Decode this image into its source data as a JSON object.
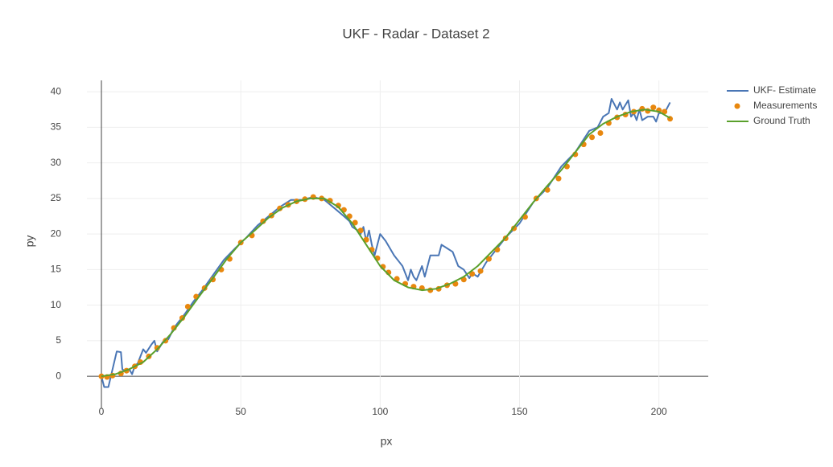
{
  "chart_data": {
    "type": "line",
    "title": "UKF - Radar - Dataset 2",
    "x_label": "px",
    "y_label": "py",
    "xlim": [
      -5.2,
      217.7
    ],
    "ylim": [
      -4.5,
      41.6
    ],
    "xticks": [
      0,
      50,
      100,
      150,
      200
    ],
    "yticks": [
      0,
      5,
      10,
      15,
      20,
      25,
      30,
      35,
      40
    ],
    "grid": true,
    "legend": "top-right",
    "series": [
      {
        "name": "UKF- Estimate",
        "color": "#4a76b5",
        "mode": "lines",
        "x": [
          0,
          1,
          2.5,
          4,
          5.5,
          7,
          7.5,
          9,
          10,
          11,
          12,
          13,
          15,
          16,
          18,
          19,
          20,
          22,
          24,
          26,
          28,
          30,
          33,
          36,
          40,
          44,
          48,
          52,
          56,
          60,
          64,
          68,
          72,
          76,
          80,
          84,
          87,
          89,
          90,
          92,
          93,
          94,
          95,
          96,
          97,
          98,
          100,
          102,
          105,
          107,
          108,
          110,
          111,
          112,
          113,
          115,
          116,
          118,
          120,
          121,
          122,
          124,
          126,
          128,
          130,
          132,
          133,
          135,
          138,
          140,
          145,
          150,
          155,
          160,
          165,
          170,
          175,
          178,
          180,
          182,
          183,
          185,
          186,
          187,
          189,
          190,
          191,
          192,
          193,
          194,
          196,
          198,
          199,
          200,
          202,
          204
        ],
        "values": [
          0,
          -1.5,
          -1.5,
          1,
          3.5,
          3.4,
          1,
          0.5,
          1,
          0.3,
          1.5,
          1.8,
          3.8,
          3.3,
          4.5,
          5,
          3.5,
          4.8,
          5.2,
          6.8,
          7.8,
          8.8,
          10.5,
          12,
          14.2,
          16.4,
          18,
          19.5,
          21.2,
          22.5,
          23.8,
          24.8,
          24.8,
          25.2,
          24.8,
          23.5,
          22.5,
          21.8,
          21,
          20.5,
          20,
          21,
          19,
          20.5,
          18.5,
          17,
          20,
          19,
          17,
          16,
          15.5,
          13.5,
          15,
          14,
          13.5,
          15.5,
          14,
          17,
          17,
          17,
          18.5,
          18,
          17.5,
          15.5,
          15,
          13.8,
          14.5,
          14,
          16,
          17,
          19.5,
          21.5,
          24.5,
          26.5,
          29.5,
          31.5,
          34.5,
          35,
          36.5,
          37,
          39,
          37.5,
          38.5,
          37.5,
          38.8,
          36.5,
          37,
          36,
          37.5,
          36,
          36.5,
          36.5,
          35.8,
          37,
          37,
          38.5
        ]
      },
      {
        "name": "Measurements",
        "color": "#e8870e",
        "mode": "markers",
        "x": [
          0,
          2,
          4,
          7,
          9,
          12,
          14,
          17,
          20,
          23,
          26,
          29,
          31,
          34,
          37,
          40,
          43,
          46,
          50,
          54,
          58,
          61,
          64,
          67,
          70,
          73,
          76,
          79,
          82,
          85,
          87,
          89,
          91,
          93,
          95,
          97,
          99,
          101,
          103,
          106,
          109,
          112,
          115,
          118,
          121,
          124,
          127,
          130,
          133,
          136,
          139,
          142,
          145,
          148,
          152,
          156,
          160,
          164,
          167,
          170,
          173,
          176,
          179,
          182,
          185,
          188,
          191,
          194,
          196,
          198,
          200,
          202,
          204
        ],
        "values": [
          0,
          -0.1,
          0.1,
          0.4,
          0.8,
          1.4,
          2,
          2.8,
          4,
          5,
          6.8,
          8.2,
          9.8,
          11.2,
          12.4,
          13.6,
          15,
          16.5,
          18.8,
          19.8,
          21.8,
          22.6,
          23.6,
          24.1,
          24.6,
          24.9,
          25.2,
          25,
          24.7,
          24,
          23.4,
          22.5,
          21.6,
          20.5,
          19.2,
          17.8,
          16.6,
          15.4,
          14.6,
          13.7,
          13,
          12.6,
          12.4,
          12.1,
          12.3,
          12.8,
          13,
          13.6,
          14.4,
          14.8,
          16.5,
          17.8,
          19.4,
          20.8,
          22.4,
          25,
          26.2,
          27.8,
          29.5,
          31.2,
          32.6,
          33.6,
          34.2,
          35.6,
          36.4,
          36.8,
          37.2,
          37.6,
          37.3,
          37.8,
          37.4,
          37.2,
          36.2
        ]
      },
      {
        "name": "Ground Truth",
        "color": "#5aa02c",
        "mode": "lines",
        "x": [
          0,
          5,
          10,
          15,
          20,
          25,
          30,
          35,
          40,
          45,
          50,
          55,
          60,
          65,
          70,
          75,
          80,
          85,
          90,
          95,
          100,
          105,
          110,
          115,
          120,
          125,
          130,
          135,
          140,
          145,
          150,
          155,
          160,
          165,
          170,
          175,
          180,
          185,
          190,
          195,
          200,
          204
        ],
        "values": [
          0,
          0.3,
          1,
          2,
          3.8,
          6,
          8.5,
          11.2,
          13.8,
          16.5,
          18.8,
          20.5,
          22.3,
          23.7,
          24.6,
          25,
          25,
          23.8,
          21.5,
          18.5,
          15.5,
          13.5,
          12.5,
          12.1,
          12.3,
          13,
          14,
          15.5,
          17.5,
          19.5,
          22,
          24.5,
          26.8,
          29,
          31.5,
          34,
          35.5,
          36.5,
          37.2,
          37.5,
          37.2,
          36.3
        ]
      }
    ]
  }
}
